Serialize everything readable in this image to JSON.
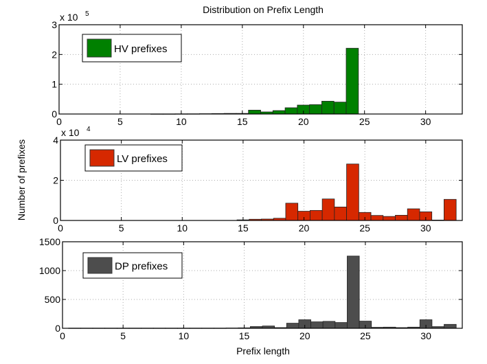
{
  "chart_data": [
    {
      "type": "bar",
      "title": "Distribution on Prefix Length",
      "xlabel": "",
      "ylabel": "",
      "y_multiplier": "x 10",
      "y_exponent": "5",
      "legend": "HV prefixes",
      "legend_placement": "top-left",
      "color": "#008000",
      "xlim": [
        0,
        33
      ],
      "ylim": [
        0,
        300000
      ],
      "x_ticks": [
        0,
        5,
        10,
        15,
        20,
        25,
        30
      ],
      "y_ticks": [
        0,
        1,
        2,
        3
      ],
      "grid": true,
      "x": [
        8,
        9,
        10,
        11,
        12,
        13,
        14,
        15,
        16,
        17,
        18,
        19,
        20,
        21,
        22,
        23,
        24
      ],
      "values": [
        300,
        300,
        500,
        600,
        1000,
        1500,
        2000,
        2000,
        13000,
        7000,
        11500,
        21000,
        30000,
        31500,
        43000,
        40000,
        221000
      ]
    },
    {
      "type": "bar",
      "ylabel": "Number of prefixes",
      "y_multiplier": "x 10",
      "y_exponent": "4",
      "legend": "LV prefixes",
      "legend_placement": "top-left",
      "color": "#d62800",
      "xlim": [
        0,
        33
      ],
      "ylim": [
        0,
        40000
      ],
      "x_ticks": [
        0,
        5,
        10,
        15,
        20,
        25,
        30
      ],
      "y_ticks": [
        0,
        2,
        4
      ],
      "grid": true,
      "x": [
        15,
        16,
        17,
        18,
        19,
        20,
        21,
        22,
        23,
        24,
        25,
        26,
        27,
        28,
        29,
        30,
        31,
        32
      ],
      "values": [
        300,
        600,
        700,
        1100,
        8600,
        4600,
        5000,
        10700,
        6700,
        28100,
        4000,
        2500,
        2000,
        2600,
        5800,
        4300,
        200,
        10500
      ]
    },
    {
      "type": "bar",
      "xlabel": "Prefix length",
      "legend": "DP prefixes",
      "legend_placement": "top-left",
      "color": "#4d4d4d",
      "xlim": [
        0,
        33
      ],
      "ylim": [
        0,
        1500
      ],
      "x_ticks": [
        0,
        5,
        10,
        15,
        20,
        25,
        30
      ],
      "y_ticks": [
        0,
        500,
        1000,
        1500
      ],
      "grid": true,
      "x": [
        1,
        2,
        3,
        4,
        5,
        6,
        7,
        8,
        9,
        10,
        11,
        12,
        13,
        14,
        15,
        16,
        17,
        18,
        19,
        20,
        21,
        22,
        23,
        24,
        25,
        26,
        27,
        28,
        29,
        30,
        31,
        32
      ],
      "values": [
        3,
        3,
        3,
        3,
        3,
        3,
        3,
        3,
        3,
        3,
        3,
        3,
        3,
        5,
        8,
        30,
        40,
        12,
        88,
        148,
        112,
        120,
        100,
        1252,
        124,
        17,
        20,
        12,
        20,
        148,
        29,
        68
      ]
    }
  ]
}
